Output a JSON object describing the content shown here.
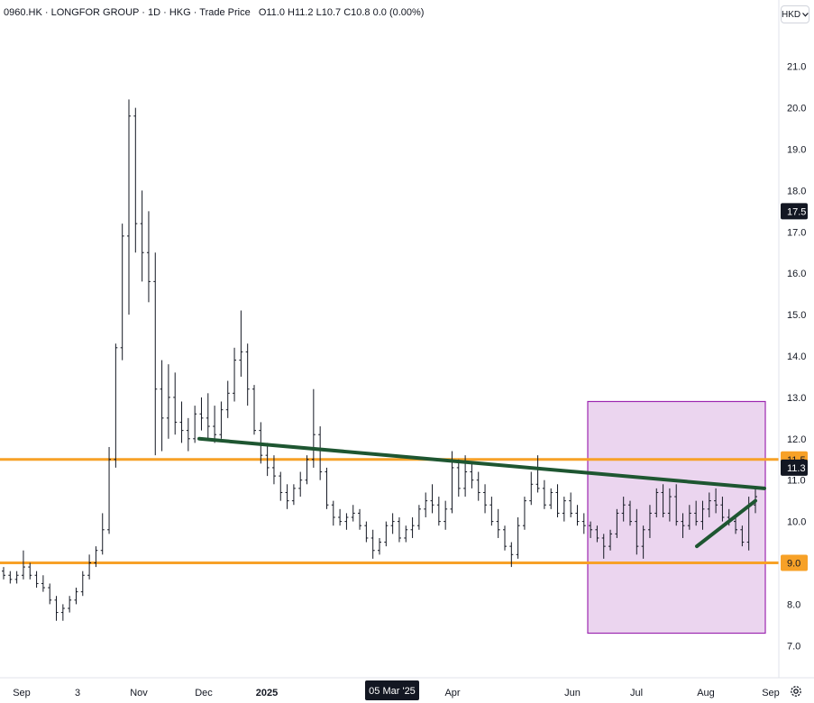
{
  "header": {
    "symbol": "0960.HK",
    "name": "LONGFOR GROUP",
    "interval": "1D",
    "exchange": "HKG",
    "series_type": "Trade Price",
    "ohlc_text": "O11.0 H11.2 L10.7 C10.8 0.0 (0.00%)"
  },
  "currency": {
    "label": "HKD",
    "icon": "chevron-down-icon"
  },
  "settings": {
    "icon": "gear-icon"
  },
  "colors": {
    "bars": "#131722",
    "support_resistance": "#f7a127",
    "trendline": "#1e5631",
    "box_fill": "#e1bee7",
    "box_stroke": "#9c27b0",
    "badge_dark": "#131722",
    "badge_orange": "#f7a127"
  },
  "chart_data": {
    "type": "ohlc",
    "y_axis": {
      "ticks": [
        "7.0",
        "8.0",
        "9.0",
        "10.0",
        "11.0",
        "12.0",
        "13.0",
        "14.0",
        "15.0",
        "16.0",
        "17.0",
        "18.0",
        "19.0",
        "20.0",
        "21.0"
      ],
      "range": [
        6.7,
        21.8
      ],
      "scale": "linear"
    },
    "x_axis": {
      "labels": [
        "Sep",
        "3",
        "Nov",
        "Dec",
        "2025",
        "Apr",
        "Jun",
        "Jul",
        "Aug",
        "Sep"
      ],
      "highlighted_label": "05 Mar '25"
    },
    "price_badges": [
      {
        "label": "17.5",
        "value": 17.5,
        "style": "dark"
      },
      {
        "label": "11.5",
        "value": 11.5,
        "style": "orange"
      },
      {
        "label": "11.3",
        "value": 11.3,
        "style": "dark"
      },
      {
        "label": "9.0",
        "value": 9.0,
        "style": "orange"
      }
    ],
    "horizontal_lines": [
      {
        "value": 11.5,
        "color": "#f7a127"
      },
      {
        "value": 9.0,
        "color": "#f7a127"
      }
    ],
    "series": [
      {
        "values": [
          [
            8.8,
            8.9,
            8.6,
            8.7
          ],
          [
            8.7,
            8.8,
            8.5,
            8.6
          ],
          [
            8.6,
            8.8,
            8.5,
            8.7
          ],
          [
            8.7,
            9.3,
            8.6,
            8.9
          ],
          [
            8.9,
            9.0,
            8.6,
            8.7
          ],
          [
            8.7,
            8.8,
            8.4,
            8.5
          ],
          [
            8.5,
            8.7,
            8.3,
            8.4
          ],
          [
            8.4,
            8.5,
            8.0,
            8.1
          ],
          [
            8.1,
            8.2,
            7.6,
            7.8
          ],
          [
            7.8,
            8.0,
            7.6,
            7.9
          ],
          [
            7.9,
            8.2,
            7.8,
            8.1
          ],
          [
            8.1,
            8.4,
            8.0,
            8.3
          ],
          [
            8.3,
            8.8,
            8.2,
            8.7
          ],
          [
            8.7,
            9.2,
            8.6,
            9.0
          ],
          [
            9.0,
            9.4,
            8.9,
            9.3
          ],
          [
            9.3,
            10.2,
            9.2,
            9.8
          ],
          [
            9.8,
            11.8,
            9.7,
            11.5
          ],
          [
            11.5,
            14.3,
            11.3,
            14.2
          ],
          [
            14.2,
            17.2,
            13.9,
            16.9
          ],
          [
            16.9,
            20.2,
            15.0,
            19.8
          ],
          [
            19.8,
            20.0,
            16.5,
            17.2
          ],
          [
            17.2,
            18.0,
            15.8,
            16.5
          ],
          [
            16.5,
            17.5,
            15.3,
            15.8
          ],
          [
            15.8,
            16.5,
            11.6,
            13.2
          ],
          [
            13.2,
            13.9,
            11.7,
            12.5
          ],
          [
            12.5,
            13.8,
            12.0,
            13.0
          ],
          [
            13.0,
            13.6,
            12.1,
            12.4
          ],
          [
            12.4,
            12.9,
            11.9,
            12.2
          ],
          [
            12.2,
            12.5,
            11.7,
            12.0
          ],
          [
            12.0,
            12.8,
            11.9,
            12.6
          ],
          [
            12.6,
            13.0,
            12.2,
            12.5
          ],
          [
            12.5,
            13.1,
            12.0,
            12.3
          ],
          [
            12.3,
            12.8,
            11.9,
            12.1
          ],
          [
            12.1,
            12.9,
            12.0,
            12.7
          ],
          [
            12.7,
            13.4,
            12.5,
            13.1
          ],
          [
            13.1,
            14.2,
            12.9,
            13.9
          ],
          [
            13.9,
            15.1,
            13.5,
            14.1
          ],
          [
            14.1,
            14.3,
            12.8,
            13.2
          ],
          [
            13.2,
            13.3,
            12.1,
            12.2
          ],
          [
            12.2,
            12.4,
            11.4,
            11.6
          ],
          [
            11.6,
            11.9,
            11.1,
            11.3
          ],
          [
            11.3,
            11.6,
            10.9,
            11.1
          ],
          [
            11.1,
            11.2,
            10.5,
            10.7
          ],
          [
            10.7,
            10.9,
            10.3,
            10.5
          ],
          [
            10.5,
            10.9,
            10.4,
            10.8
          ],
          [
            10.8,
            11.2,
            10.6,
            11.0
          ],
          [
            11.0,
            11.6,
            10.9,
            11.5
          ],
          [
            11.5,
            13.2,
            11.3,
            12.1
          ],
          [
            12.1,
            12.3,
            11.0,
            11.2
          ],
          [
            11.2,
            11.3,
            10.3,
            10.4
          ],
          [
            10.4,
            10.5,
            9.9,
            10.1
          ],
          [
            10.1,
            10.3,
            9.9,
            10.0
          ],
          [
            10.0,
            10.2,
            9.8,
            10.1
          ],
          [
            10.1,
            10.4,
            10.0,
            10.2
          ],
          [
            10.2,
            10.3,
            9.8,
            9.9
          ],
          [
            9.9,
            10.0,
            9.5,
            9.6
          ],
          [
            9.6,
            9.8,
            9.1,
            9.3
          ],
          [
            9.3,
            9.6,
            9.2,
            9.5
          ],
          [
            9.5,
            10.0,
            9.4,
            9.9
          ],
          [
            9.9,
            10.2,
            9.7,
            10.0
          ],
          [
            10.0,
            10.1,
            9.5,
            9.6
          ],
          [
            9.6,
            9.9,
            9.5,
            9.8
          ],
          [
            9.8,
            10.1,
            9.6,
            9.9
          ],
          [
            9.9,
            10.4,
            9.8,
            10.3
          ],
          [
            10.3,
            10.7,
            10.1,
            10.5
          ],
          [
            10.5,
            10.9,
            10.2,
            10.4
          ],
          [
            10.4,
            10.6,
            9.9,
            10.0
          ],
          [
            10.0,
            10.5,
            9.8,
            10.3
          ],
          [
            10.3,
            11.7,
            10.2,
            11.3
          ],
          [
            11.3,
            11.5,
            10.6,
            10.8
          ],
          [
            10.8,
            11.6,
            10.6,
            11.2
          ],
          [
            11.2,
            11.4,
            10.8,
            11.0
          ],
          [
            11.0,
            11.2,
            10.5,
            10.7
          ],
          [
            10.7,
            10.9,
            10.2,
            10.4
          ],
          [
            10.4,
            10.6,
            9.9,
            10.0
          ],
          [
            10.0,
            10.3,
            9.6,
            9.8
          ],
          [
            9.8,
            9.9,
            9.3,
            9.4
          ],
          [
            9.4,
            9.5,
            8.9,
            9.2
          ],
          [
            9.2,
            10.1,
            9.1,
            9.9
          ],
          [
            9.9,
            10.6,
            9.8,
            10.5
          ],
          [
            10.5,
            11.2,
            10.4,
            10.9
          ],
          [
            10.9,
            11.6,
            10.7,
            10.8
          ],
          [
            10.8,
            11.0,
            10.3,
            10.4
          ],
          [
            10.4,
            10.8,
            10.3,
            10.7
          ],
          [
            10.7,
            10.9,
            10.1,
            10.2
          ],
          [
            10.2,
            10.6,
            10.0,
            10.5
          ],
          [
            10.5,
            10.7,
            10.1,
            10.2
          ],
          [
            10.2,
            10.4,
            9.9,
            10.0
          ],
          [
            10.0,
            10.2,
            9.7,
            9.9
          ],
          [
            9.9,
            10.0,
            9.6,
            9.8
          ],
          [
            9.8,
            9.9,
            9.5,
            9.6
          ],
          [
            9.6,
            9.7,
            9.1,
            9.4
          ],
          [
            9.4,
            9.8,
            9.3,
            9.7
          ],
          [
            9.7,
            10.3,
            9.6,
            10.2
          ],
          [
            10.2,
            10.6,
            10.0,
            10.4
          ],
          [
            10.4,
            10.5,
            9.9,
            10.0
          ],
          [
            10.0,
            10.3,
            9.2,
            9.4
          ],
          [
            9.4,
            9.9,
            9.1,
            9.8
          ],
          [
            9.8,
            10.4,
            9.6,
            10.2
          ],
          [
            10.2,
            10.8,
            10.1,
            10.7
          ],
          [
            10.7,
            10.9,
            10.1,
            10.2
          ],
          [
            10.2,
            10.8,
            10.0,
            10.6
          ],
          [
            10.6,
            10.9,
            9.9,
            10.0
          ],
          [
            10.0,
            10.2,
            9.6,
            9.9
          ],
          [
            9.9,
            10.4,
            9.8,
            10.2
          ],
          [
            10.2,
            10.5,
            9.9,
            10.0
          ],
          [
            10.0,
            10.5,
            9.8,
            10.3
          ],
          [
            10.3,
            10.7,
            10.1,
            10.5
          ],
          [
            10.5,
            10.8,
            10.2,
            10.4
          ],
          [
            10.4,
            10.6,
            10.0,
            10.1
          ],
          [
            10.1,
            10.3,
            9.9,
            10.0
          ],
          [
            10.0,
            10.1,
            9.7,
            9.8
          ],
          [
            9.8,
            9.9,
            9.4,
            9.5
          ],
          [
            9.5,
            10.6,
            9.3,
            10.4
          ],
          [
            10.4,
            10.8,
            10.2,
            10.6
          ]
        ]
      }
    ],
    "trendlines": [
      {
        "name": "",
        "points": [
          [
            0,
            12.0
          ],
          [
            1,
            10.8
          ]
        ],
        "color": "#1e5631"
      },
      {
        "name": "",
        "points": [
          [
            0,
            9.4
          ],
          [
            1,
            10.5
          ]
        ],
        "color": "#1e5631"
      }
    ],
    "highlight_box": {
      "y_range": [
        7.3,
        12.9
      ],
      "color": "#9c27b0"
    }
  }
}
